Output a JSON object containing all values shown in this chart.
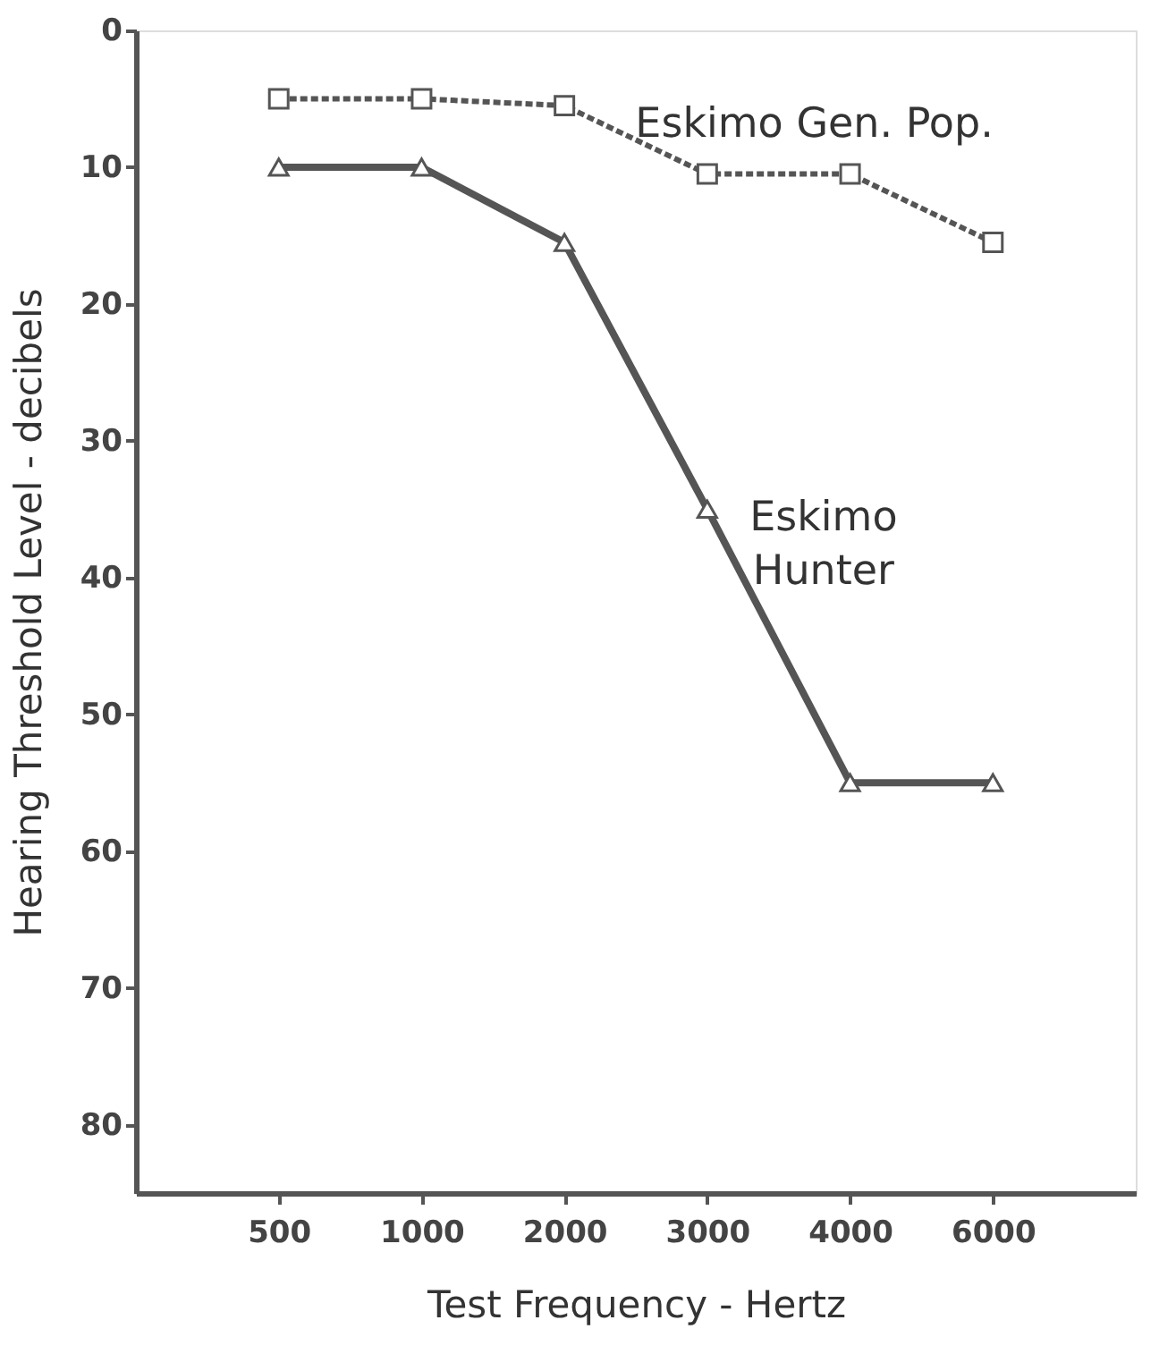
{
  "chart_data": {
    "type": "line",
    "xlabel": "Test Frequency - Hertz",
    "ylabel": "Hearing Threshold Level - decibels",
    "categories": [
      "500",
      "1000",
      "2000",
      "3000",
      "4000",
      "6000"
    ],
    "ylim": [
      85,
      0
    ],
    "yticks": [
      0,
      10,
      20,
      30,
      40,
      50,
      60,
      70,
      80
    ],
    "series": [
      {
        "name": "Eskimo Gen. Pop.",
        "color": "#555555",
        "values": [
          5,
          5,
          5.5,
          10.5,
          10.5,
          15.5
        ],
        "marker": "square",
        "line_style": "dashed"
      },
      {
        "name": "Eskimo Hunter",
        "color": "#555555",
        "values": [
          10,
          10,
          15.5,
          35,
          55,
          55
        ],
        "marker": "triangle",
        "line_style": "solid"
      }
    ]
  }
}
